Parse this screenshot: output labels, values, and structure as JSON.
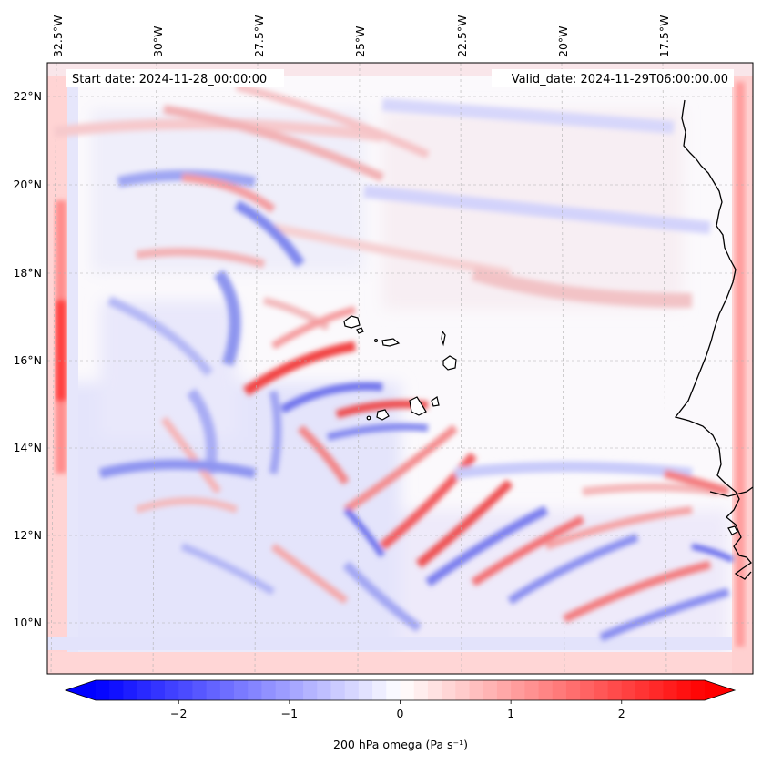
{
  "map": {
    "start_label": "Start date: 2024-11-28_00:00:00",
    "valid_label": "Valid_date: 2024-11-29T06:00:00.00",
    "lon_labels": [
      "32.5°W",
      "30°W",
      "27.5°W",
      "25°W",
      "22.5°W",
      "20°W",
      "17.5°W"
    ],
    "lat_labels": [
      "22°N",
      "20°N",
      "18°N",
      "16°N",
      "14°N",
      "12°N",
      "10°N"
    ],
    "field_description": "200 hPa vertical velocity field, alternating positive (red) and negative (blue) bands",
    "coastline_color": "#000000",
    "gridline_color": "#b0b0b0"
  },
  "colorbar": {
    "label": "200 hPa omega (Pa s⁻¹)",
    "ticks": [
      "−2",
      "−1",
      "0",
      "1",
      "2"
    ],
    "tick_values": [
      -2,
      -1,
      0,
      1,
      2
    ],
    "range": [
      -2.75,
      2.75
    ],
    "extend": "both",
    "colormap": "bwr",
    "low_color": "#0000ff",
    "mid_color": "#ffffff",
    "high_color": "#ff0000"
  }
}
